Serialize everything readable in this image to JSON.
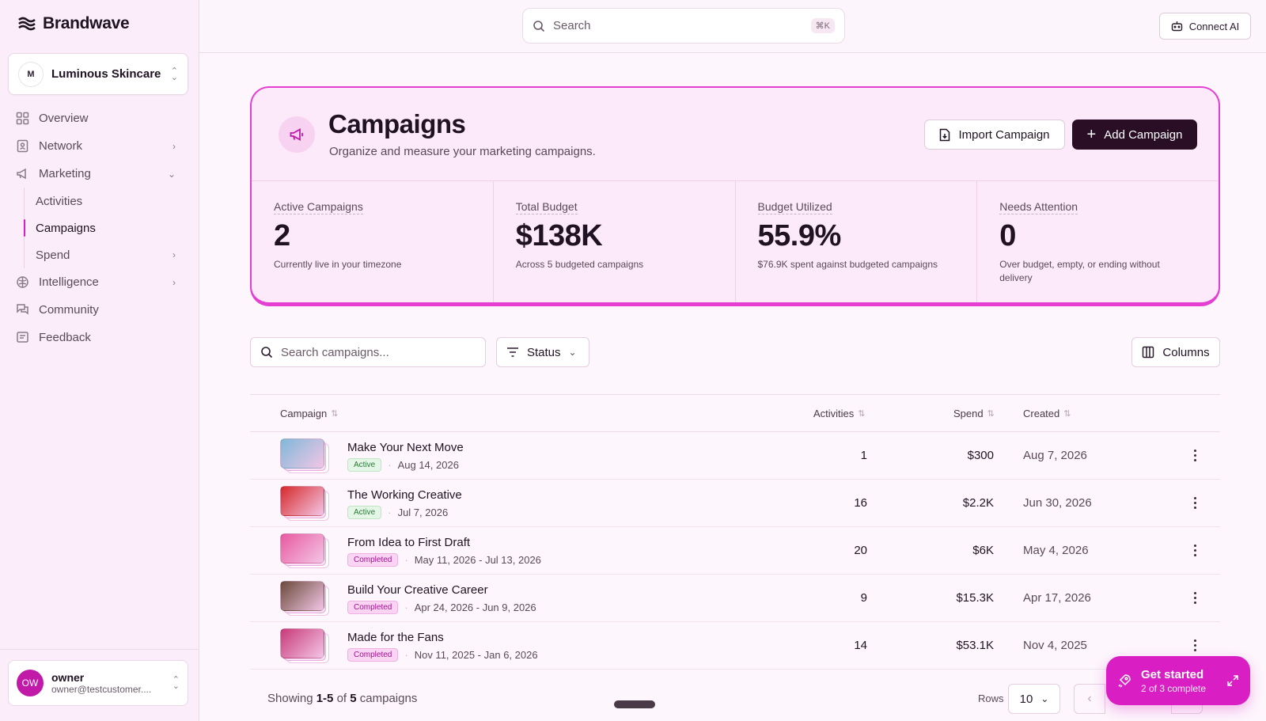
{
  "brand": {
    "name": "Brandwave"
  },
  "org": {
    "name": "Luminous Skincare",
    "logo_text": "M"
  },
  "nav": {
    "items": [
      {
        "label": "Overview"
      },
      {
        "label": "Network"
      },
      {
        "label": "Marketing"
      }
    ],
    "marketing_sub": [
      {
        "label": "Activities"
      },
      {
        "label": "Campaigns"
      },
      {
        "label": "Spend"
      }
    ],
    "bottom_items": [
      {
        "label": "Intelligence"
      },
      {
        "label": "Community"
      },
      {
        "label": "Feedback"
      }
    ]
  },
  "user": {
    "initials": "OW",
    "name": "owner",
    "email": "owner@testcustomer...."
  },
  "topbar": {
    "search_placeholder": "Search",
    "shortcut": "⌘K",
    "connect_ai": "Connect AI"
  },
  "hero": {
    "title": "Campaigns",
    "subtitle": "Organize and measure your marketing campaigns.",
    "import_label": "Import Campaign",
    "add_label": "Add Campaign",
    "stats": [
      {
        "label": "Active Campaigns",
        "value": "2",
        "desc": "Currently live in your timezone"
      },
      {
        "label": "Total Budget",
        "value": "$138K",
        "desc": "Across 5 budgeted campaigns"
      },
      {
        "label": "Budget Utilized",
        "value": "55.9%",
        "desc": "$76.9K spent against budgeted campaigns"
      },
      {
        "label": "Needs Attention",
        "value": "0",
        "desc": "Over budget, empty, or ending without delivery"
      }
    ]
  },
  "filters": {
    "search_placeholder": "Search campaigns...",
    "status_label": "Status",
    "columns_label": "Columns"
  },
  "table": {
    "headers": {
      "campaign": "Campaign",
      "activities": "Activities",
      "spend": "Spend",
      "created": "Created"
    },
    "rows": [
      {
        "title": "Make Your Next Move",
        "status": "Active",
        "dates": "Aug 14, 2026",
        "activities": "1",
        "spend": "$300",
        "created": "Aug 7, 2026",
        "thumb_color": "#7fb8d8"
      },
      {
        "title": "The Working Creative",
        "status": "Active",
        "dates": "Jul 7, 2026",
        "activities": "16",
        "spend": "$2.2K",
        "created": "Jun 30, 2026",
        "thumb_color": "#d62a2a"
      },
      {
        "title": "From Idea to First Draft",
        "status": "Completed",
        "dates": "May 11, 2026 - Jul 13, 2026",
        "activities": "20",
        "spend": "$6K",
        "created": "May 4, 2026",
        "thumb_color": "#e85aa0"
      },
      {
        "title": "Build Your Creative Career",
        "status": "Completed",
        "dates": "Apr 24, 2026 - Jun 9, 2026",
        "activities": "9",
        "spend": "$15.3K",
        "created": "Apr 17, 2026",
        "thumb_color": "#6a4a3a"
      },
      {
        "title": "Made for the Fans",
        "status": "Completed",
        "dates": "Nov 11, 2025 - Jan 6, 2026",
        "activities": "14",
        "spend": "$53.1K",
        "created": "Nov 4, 2025",
        "thumb_color": "#c83a7a"
      }
    ]
  },
  "footer": {
    "showing_prefix": "Showing",
    "range": "1-5",
    "of": "of",
    "total": "5",
    "suffix": "campaigns",
    "rows_label": "Rows",
    "rows_value": "10"
  },
  "get_started": {
    "title": "Get started",
    "progress": "2 of 3 complete"
  },
  "colors": {
    "accent": "#d91ec4",
    "dark_button": "#2a0e26"
  }
}
